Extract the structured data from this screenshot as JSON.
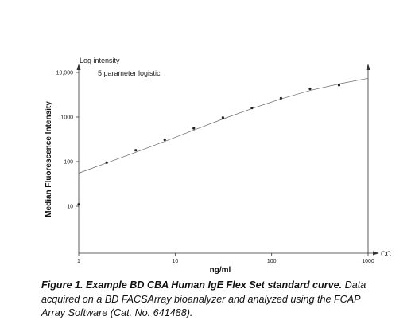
{
  "chart_data": {
    "type": "scatter",
    "x_scale": "log",
    "y_scale": "log",
    "xlim": [
      1,
      1000
    ],
    "ylim": [
      1,
      10000
    ],
    "x_ticks": [
      {
        "value": 1,
        "label": "1"
      },
      {
        "value": 10,
        "label": "10"
      },
      {
        "value": 100,
        "label": "100"
      },
      {
        "value": 1000,
        "label": "1000"
      }
    ],
    "y_ticks": [
      {
        "value": 10,
        "label": "10"
      },
      {
        "value": 100,
        "label": "100"
      },
      {
        "value": 1000,
        "label": "1000"
      },
      {
        "value": 10000,
        "label": "10,000"
      }
    ],
    "x_axis_end_label": "CC",
    "y_axis_top_label": "Log intensity",
    "annotation": "5 parameter logistic",
    "xlabel": "ng/ml",
    "ylabel": "Median Fluorescence Intensity",
    "points": [
      {
        "x": 1.0,
        "y": 11
      },
      {
        "x": 1.95,
        "y": 95
      },
      {
        "x": 3.9,
        "y": 180
      },
      {
        "x": 7.8,
        "y": 310
      },
      {
        "x": 15.6,
        "y": 560
      },
      {
        "x": 31.25,
        "y": 970
      },
      {
        "x": 62.5,
        "y": 1600
      },
      {
        "x": 125,
        "y": 2650
      },
      {
        "x": 250,
        "y": 4300
      },
      {
        "x": 500,
        "y": 5200
      }
    ],
    "fit_curve": [
      {
        "x": 1.0,
        "y": 55
      },
      {
        "x": 2,
        "y": 95
      },
      {
        "x": 4,
        "y": 165
      },
      {
        "x": 8,
        "y": 290
      },
      {
        "x": 16,
        "y": 520
      },
      {
        "x": 32,
        "y": 920
      },
      {
        "x": 64,
        "y": 1580
      },
      {
        "x": 128,
        "y": 2600
      },
      {
        "x": 256,
        "y": 4000
      },
      {
        "x": 512,
        "y": 5600
      },
      {
        "x": 1000,
        "y": 7400
      }
    ],
    "grid": false,
    "legend": "none"
  },
  "caption": {
    "lead": "Figure 1. Example BD CBA Human IgE Flex Set standard curve.",
    "body": " Data acquired on a BD FACSArray bioanalyzer and analyzed using the FCAP Array Software (Cat. No. 641488)."
  }
}
